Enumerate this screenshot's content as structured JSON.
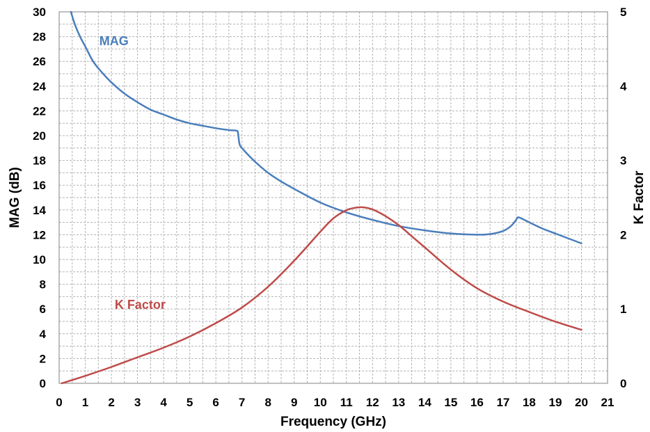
{
  "chart_data": {
    "type": "line",
    "title": "",
    "xlabel": "Frequency (GHz)",
    "ylabel": "MAG (dB)",
    "y2label": "K Factor",
    "xlim": [
      0,
      21
    ],
    "ylim": [
      0,
      30
    ],
    "y2lim": [
      0,
      5
    ],
    "xticks": [
      "0",
      "1",
      "2",
      "3",
      "4",
      "5",
      "6",
      "7",
      "8",
      "9",
      "10",
      "11",
      "12",
      "13",
      "14",
      "15",
      "16",
      "17",
      "18",
      "19",
      "20",
      "21"
    ],
    "yticks": [
      "0",
      "2",
      "4",
      "6",
      "8",
      "10",
      "12",
      "14",
      "16",
      "18",
      "20",
      "22",
      "24",
      "26",
      "28",
      "30"
    ],
    "y2ticks": [
      "0",
      "1",
      "2",
      "3",
      "4",
      "5"
    ],
    "grid": true,
    "series": [
      {
        "name": "MAG",
        "axis": "left",
        "color": "#4a7ebb",
        "x": [
          0.45,
          0.6,
          0.8,
          1.0,
          1.3,
          1.6,
          2.0,
          2.5,
          3.0,
          3.5,
          4.0,
          4.5,
          5.0,
          5.5,
          6.0,
          6.5,
          6.8,
          6.85,
          6.9,
          7.0,
          7.5,
          8.0,
          8.5,
          9.0,
          10.0,
          11.0,
          12.0,
          13.0,
          14.0,
          15.0,
          16.0,
          16.5,
          17.0,
          17.3,
          17.5,
          17.6,
          18.0,
          18.5,
          19.0,
          19.5,
          20.0
        ],
        "y": [
          30.0,
          29.0,
          28.0,
          27.2,
          26.0,
          25.2,
          24.3,
          23.4,
          22.7,
          22.1,
          21.7,
          21.3,
          21.0,
          20.8,
          20.6,
          20.45,
          20.4,
          20.2,
          19.4,
          19.0,
          17.9,
          17.0,
          16.3,
          15.7,
          14.6,
          13.8,
          13.2,
          12.7,
          12.35,
          12.1,
          12.0,
          12.05,
          12.3,
          12.7,
          13.2,
          13.4,
          13.0,
          12.5,
          12.1,
          11.7,
          11.3
        ]
      },
      {
        "name": "K Factor",
        "axis": "right",
        "color": "#be4b48",
        "x": [
          0.1,
          1,
          2,
          3,
          4,
          5,
          6,
          7,
          8,
          9,
          10,
          10.5,
          11,
          11.3,
          11.6,
          12,
          12.5,
          13,
          13.5,
          14,
          15,
          16,
          17,
          18,
          19,
          20
        ],
        "y": [
          0.0,
          0.1,
          0.22,
          0.35,
          0.48,
          0.63,
          0.81,
          1.02,
          1.3,
          1.65,
          2.04,
          2.22,
          2.33,
          2.36,
          2.37,
          2.34,
          2.25,
          2.13,
          1.98,
          1.83,
          1.53,
          1.28,
          1.1,
          0.96,
          0.83,
          0.72
        ]
      }
    ],
    "annotations": [
      {
        "text": "MAG",
        "x": 2.1,
        "y": 27.3,
        "color": "#4a7ebb"
      },
      {
        "text": "K Factor",
        "x": 3.1,
        "y": 6.0,
        "color": "#be4b48"
      }
    ]
  }
}
